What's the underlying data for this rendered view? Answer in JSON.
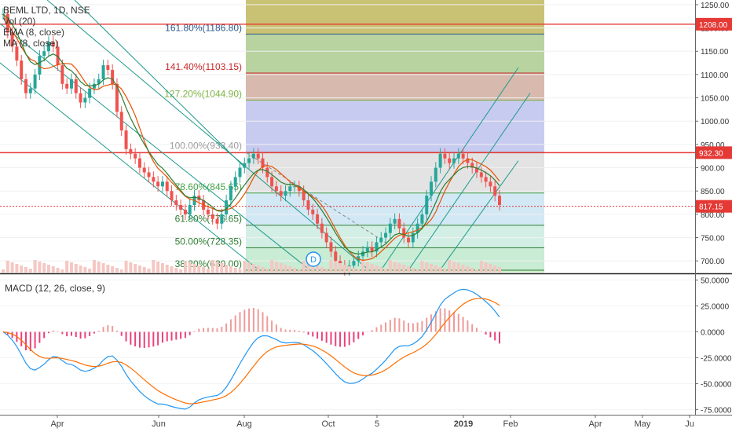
{
  "chart_data": {
    "type": "candlestick",
    "symbol_line": "BEML LTD, 1D, NSE",
    "indicators": [
      "Vol (20)",
      "EMA (8, close)",
      "MA (8, close)"
    ],
    "price_axis": {
      "ylim": [
        675,
        1260
      ],
      "ticks": [
        700,
        750,
        800,
        850,
        900,
        950,
        1000,
        1050,
        1100,
        1150,
        1200,
        1250
      ],
      "tick_labels": [
        "700.00",
        "750.00",
        "800.00",
        "850.00",
        "900.00",
        "950.00",
        "1000.00",
        "1050.00",
        "1100.00",
        "1150.00",
        "1200.00",
        "1250.00"
      ]
    },
    "macd_panel": {
      "title": "MACD (12, 26, close, 9)",
      "ylim": [
        -80,
        55
      ],
      "ticks": [
        50,
        25,
        0,
        -25,
        -50,
        -75
      ],
      "tick_labels": [
        "50.0000",
        "25.0000",
        "0.0000",
        "-25.0000",
        "-50.0000",
        "-75.0000"
      ]
    },
    "x_labels": [
      "Apr",
      "Jun",
      "Aug",
      "Oct",
      "5",
      "2019",
      "Feb",
      "Apr",
      "May",
      "Ju"
    ],
    "price_tags": [
      {
        "label": "1208.00",
        "value": 1208.0,
        "color": "#e53935"
      },
      {
        "label": "932.30",
        "value": 932.3,
        "color": "#e53935"
      },
      {
        "label": "817.15",
        "value": 817.15,
        "color": "#e53935"
      }
    ],
    "fib_levels": [
      {
        "label": "161.80%(1186.80)",
        "value": 1186.8,
        "color": "#2f5a8c"
      },
      {
        "label": "141.40%(1103.15)",
        "value": 1103.15,
        "color": "#c62828"
      },
      {
        "label": "127.20%(1044.90)",
        "value": 1044.9,
        "color": "#7cb342"
      },
      {
        "label": "100.00%(933.40)",
        "value": 933.4,
        "color": "#9e9e9e"
      },
      {
        "label": "78.60%(845.65)",
        "value": 845.65,
        "color": "#43a047"
      },
      {
        "label": "61.80%(776.65)",
        "value": 776.65,
        "color": "#2e7d32"
      },
      {
        "label": "50.00%(728.35)",
        "value": 728.35,
        "color": "#2e7d32"
      },
      {
        "label": "38.20%(680.00)",
        "value": 680.0,
        "color": "#2e7d32"
      }
    ],
    "annotation_marker": "D",
    "close_series": [
      1230,
      1190,
      1160,
      1130,
      1090,
      1060,
      1070,
      1100,
      1140,
      1150,
      1170,
      1160,
      1120,
      1080,
      1070,
      1090,
      1060,
      1040,
      1050,
      1070,
      1080,
      1090,
      1120,
      1110,
      1080,
      1020,
      980,
      940,
      930,
      920,
      900,
      890,
      880,
      870,
      860,
      870,
      850,
      830,
      820,
      810,
      800,
      820,
      840,
      830,
      810,
      800,
      790,
      780,
      800,
      830,
      860,
      880,
      900,
      910,
      920,
      930,
      920,
      900,
      880,
      860,
      850,
      840,
      850,
      860,
      860,
      850,
      830,
      810,
      800,
      780,
      760,
      740,
      720,
      700,
      690,
      680,
      690,
      700,
      710,
      720,
      730,
      720,
      740,
      750,
      760,
      780,
      790,
      770,
      750,
      740,
      760,
      780,
      800,
      840,
      870,
      900,
      930,
      920,
      910,
      920,
      930,
      920,
      910,
      900,
      890,
      880,
      870,
      860,
      840,
      820
    ]
  }
}
